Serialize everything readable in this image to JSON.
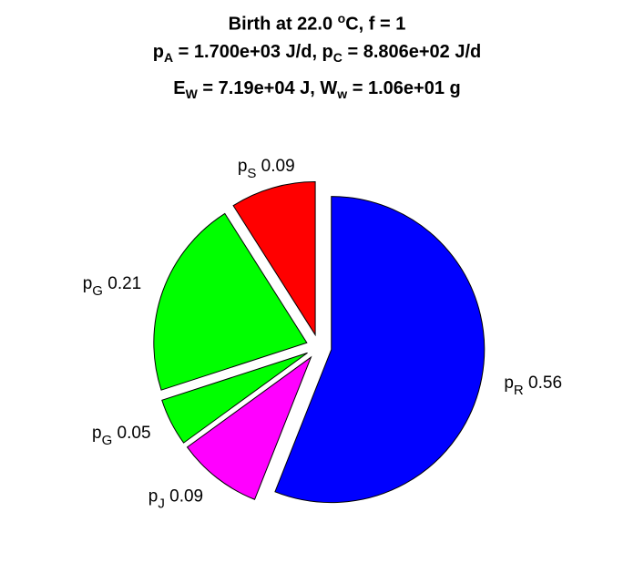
{
  "chart_data": {
    "type": "pie",
    "title_lines": [
      {
        "parts": [
          {
            "text": "Birth at 22.0 ",
            "style": "normal"
          },
          {
            "text": "o",
            "style": "sup"
          },
          {
            "text": "C, f = 1",
            "style": "normal"
          }
        ]
      },
      {
        "parts": [
          {
            "text": "p",
            "style": "normal"
          },
          {
            "text": "A",
            "style": "sub"
          },
          {
            "text": " = 1.700e+03 J/d, p",
            "style": "normal"
          },
          {
            "text": "C",
            "style": "sub"
          },
          {
            "text": " = 8.806e+02 J/d",
            "style": "normal"
          }
        ]
      },
      {
        "parts": [
          {
            "text": "E",
            "style": "normal"
          },
          {
            "text": "W",
            "style": "sub"
          },
          {
            "text": " = 7.19e+04 J, W",
            "style": "normal"
          },
          {
            "text": "w",
            "style": "sub"
          },
          {
            "text": " = 1.06e+01 g",
            "style": "normal"
          }
        ]
      }
    ],
    "slices": [
      {
        "symbol": "p",
        "subscript": "R",
        "value": 0.56,
        "label": "0.56",
        "color": "#0000ff",
        "exploded": true
      },
      {
        "symbol": "p",
        "subscript": "J",
        "value": 0.09,
        "label": "0.09",
        "color": "#ff00ff",
        "exploded": true
      },
      {
        "symbol": "p",
        "subscript": "G",
        "value": 0.05,
        "label": "0.05",
        "color": "#00ff00",
        "exploded": true
      },
      {
        "symbol": "p",
        "subscript": "G",
        "value": 0.21,
        "label": "0.21",
        "color": "#00ff00",
        "exploded": true
      },
      {
        "symbol": "p",
        "subscript": "S",
        "value": 0.09,
        "label": "0.09",
        "color": "#ff0000",
        "exploded": true
      }
    ],
    "start": "12 o'clock",
    "direction": "clockwise",
    "edge_color": "#000000"
  }
}
